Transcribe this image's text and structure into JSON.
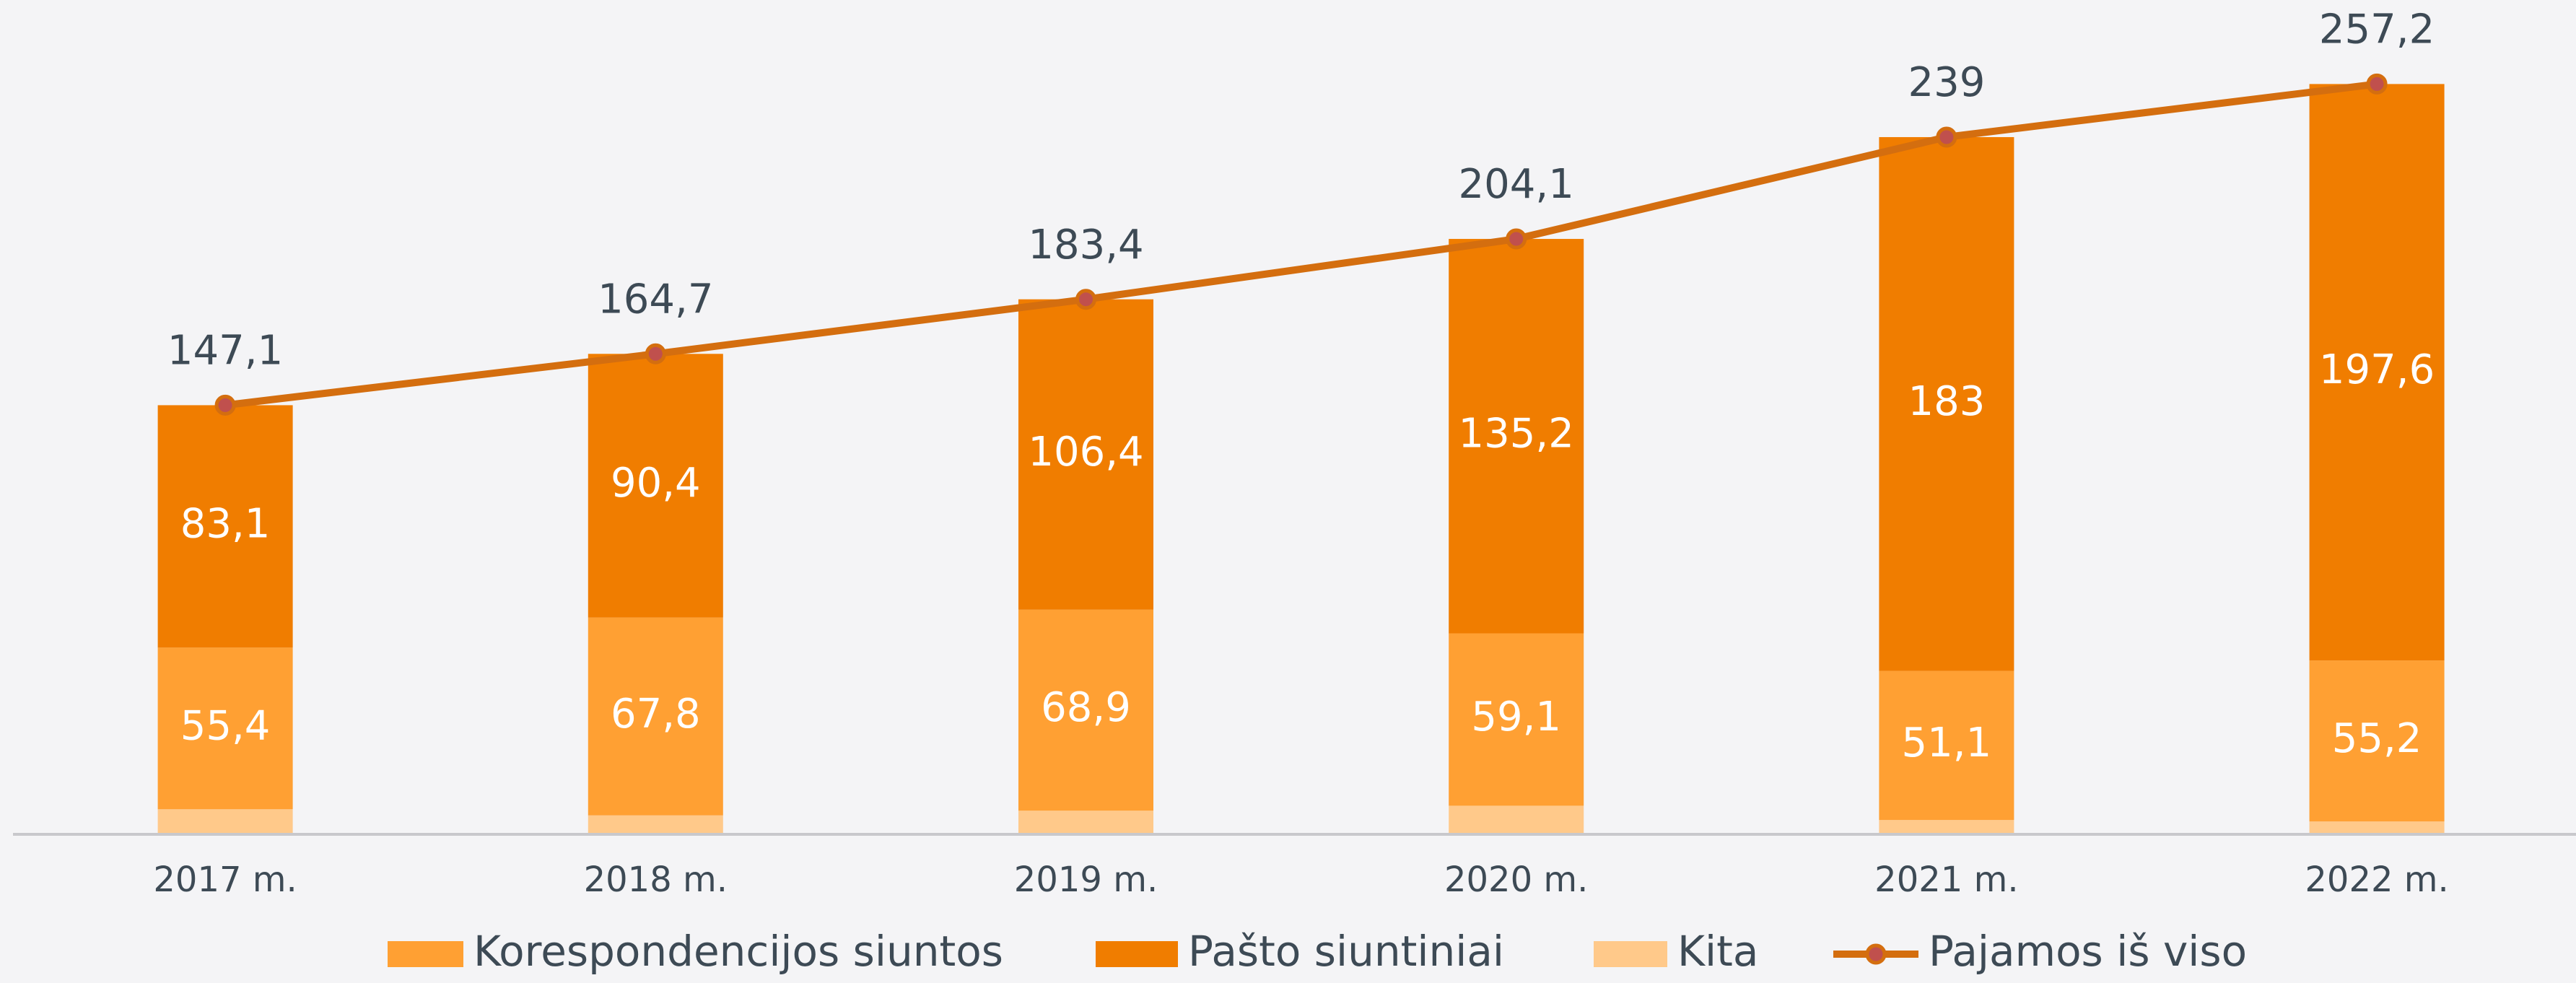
{
  "chart_data": {
    "type": "bar",
    "stacked": true,
    "categories": [
      "2017 m.",
      "2018 m.",
      "2019 m.",
      "2020 m.",
      "2021 m.",
      "2022 m."
    ],
    "ylim": [
      0,
      286
    ],
    "series": [
      {
        "name": "Korespondencijos siuntos",
        "color": "#ffa033",
        "values": [
          55.4,
          67.8,
          68.9,
          59.1,
          51.1,
          55.2
        ],
        "value_labels": [
          "55,4",
          "67,8",
          "68,9",
          "59,1",
          "51,1",
          "55,2"
        ]
      },
      {
        "name": "Pašto siuntiniai",
        "color": "#f07d00",
        "values": [
          83.1,
          90.4,
          106.4,
          135.2,
          183,
          197.6
        ],
        "value_labels": [
          "83,1",
          "90,4",
          "106,4",
          "135,2",
          "183",
          "197,6"
        ]
      },
      {
        "name": "Kita",
        "color": "#ffc98a",
        "values": [
          8.6,
          6.5,
          8.1,
          9.8,
          4.9,
          4.4
        ]
      },
      {
        "name": "Pajamos iš viso",
        "type": "line",
        "color": "#d46e0f",
        "values": [
          147.1,
          164.7,
          183.4,
          204.1,
          239,
          257.2
        ],
        "value_labels": [
          "147,1",
          "164,7",
          "183,4",
          "204,1",
          "239",
          "257,2"
        ]
      }
    ]
  }
}
